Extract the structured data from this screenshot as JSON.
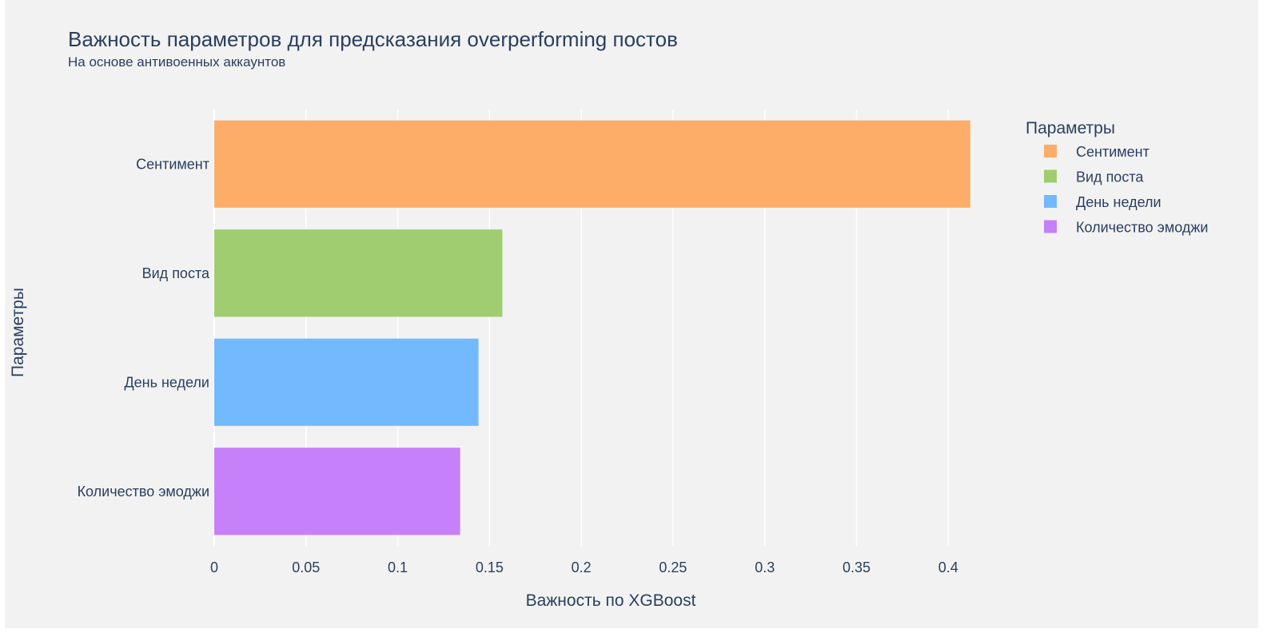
{
  "chart_data": {
    "type": "bar",
    "orientation": "horizontal",
    "title": "Важность параметров для предсказания overperforming постов",
    "subtitle": "На основе антивоенных аккаунтов",
    "xlabel": "Важность по XGBoost",
    "ylabel": "Параметры",
    "xlim": [
      0,
      0.4125
    ],
    "x_ticks": [
      "0",
      "0.05",
      "0.1",
      "0.15",
      "0.2",
      "0.25",
      "0.3",
      "0.35",
      "0.4"
    ],
    "categories": [
      "Сентимент",
      "Вид поста",
      "День недели",
      "Количество эмоджи"
    ],
    "values": [
      0.412,
      0.157,
      0.144,
      0.134
    ],
    "colors": [
      "#fead68",
      "#a0cd70",
      "#73b9fd",
      "#c580fa"
    ],
    "grid": true,
    "legend": {
      "title": "Параметры",
      "placement": "right",
      "items": [
        "Сентимент",
        "Вид поста",
        "День недели",
        "Количество эмоджи"
      ]
    }
  }
}
